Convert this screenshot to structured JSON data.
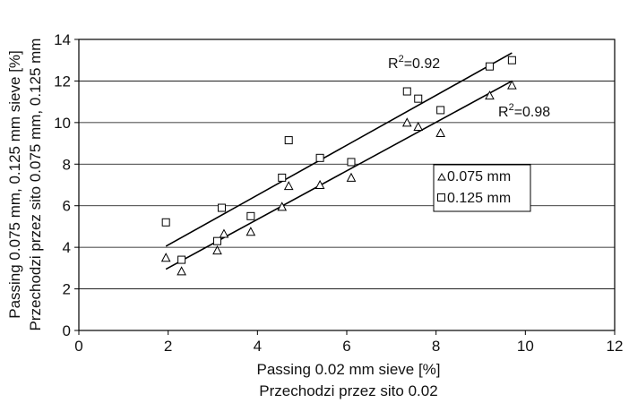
{
  "chart_data": {
    "type": "scatter",
    "xlabel": [
      "Passing 0.02 mm sieve [%]",
      "Przechodzi przez sito 0.02"
    ],
    "ylabel": [
      "Passing 0.075 mm, 0.125 mm sieve [%]",
      "Przechodzi przez sito 0.075 mm, 0.125 mm"
    ],
    "xlim": [
      0,
      12
    ],
    "ylim": [
      0,
      14
    ],
    "xticks": [
      0,
      2,
      4,
      6,
      8,
      10,
      12
    ],
    "yticks": [
      0,
      2,
      4,
      6,
      8,
      10,
      12,
      14
    ],
    "grid": "horizontal",
    "legend_position": "right-middle",
    "series": [
      {
        "name": "0.075 mm",
        "marker": "triangle",
        "x": [
          1.95,
          2.3,
          3.1,
          3.25,
          3.85,
          4.55,
          4.7,
          5.4,
          6.1,
          7.35,
          7.6,
          8.1,
          9.2,
          9.7
        ],
        "y": [
          3.5,
          2.85,
          3.85,
          4.65,
          4.75,
          5.95,
          6.95,
          7.0,
          7.35,
          10.0,
          9.8,
          9.5,
          11.3,
          11.8
        ],
        "trend": {
          "x": [
            1.95,
            9.7
          ],
          "y": [
            2.95,
            12.0
          ],
          "r2_label": "R²=0.98"
        }
      },
      {
        "name": "0.125 mm",
        "marker": "square",
        "x": [
          1.95,
          2.3,
          3.1,
          3.2,
          3.85,
          4.55,
          4.7,
          5.4,
          6.1,
          7.35,
          7.6,
          8.1,
          9.2,
          9.7
        ],
        "y": [
          5.2,
          3.4,
          4.3,
          5.9,
          5.5,
          7.35,
          9.15,
          8.3,
          8.1,
          11.5,
          11.15,
          10.6,
          12.7,
          13.0
        ],
        "trend": {
          "x": [
            1.95,
            9.7
          ],
          "y": [
            4.05,
            13.35
          ],
          "r2_label": "R²=0.92"
        }
      }
    ]
  }
}
